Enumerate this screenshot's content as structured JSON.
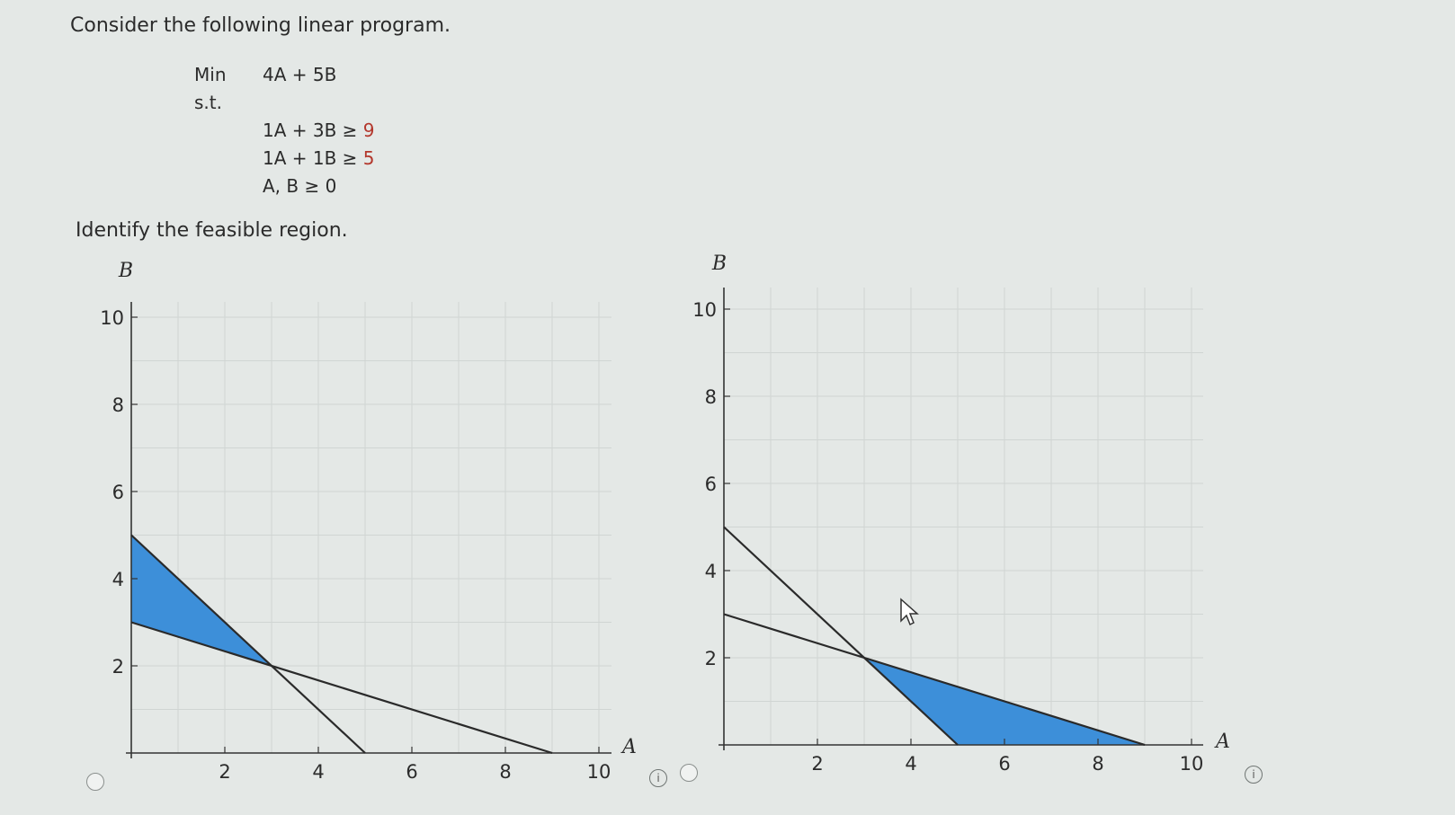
{
  "question": {
    "intro": "Consider the following linear program.",
    "objective_kw": "Min",
    "objective": "4A + 5B",
    "st_kw": "s.t.",
    "constraints": [
      {
        "lhs": "1A + 3B ≥ ",
        "rhs": "9"
      },
      {
        "lhs": "1A + 1B ≥ ",
        "rhs": "5"
      }
    ],
    "nonneg": "A, B ≥ 0",
    "prompt": "Identify the feasible region."
  },
  "choices": [
    {
      "chart_data": {
        "type": "line",
        "xlabel": "A",
        "ylabel": "B",
        "xlim": [
          0,
          10
        ],
        "ylim": [
          0,
          10
        ],
        "xticks": [
          "2",
          "4",
          "6",
          "8",
          "10"
        ],
        "yticks": [
          "2",
          "4",
          "6",
          "8",
          "10"
        ],
        "lines": [
          {
            "x": [
              0,
              5
            ],
            "y": [
              5,
              0
            ]
          },
          {
            "x": [
              0,
              9
            ],
            "y": [
              3,
              0
            ]
          }
        ],
        "shaded_region": {
          "x": [
            0,
            0,
            3
          ],
          "y": [
            5,
            3,
            2
          ]
        },
        "grid": true
      }
    },
    {
      "chart_data": {
        "type": "line",
        "xlabel": "A",
        "ylabel": "B",
        "xlim": [
          0,
          10
        ],
        "ylim": [
          0,
          10
        ],
        "xticks": [
          "2",
          "4",
          "6",
          "8",
          "10"
        ],
        "yticks": [
          "2",
          "4",
          "6",
          "8",
          "10"
        ],
        "lines": [
          {
            "x": [
              0,
              5
            ],
            "y": [
              5,
              0
            ]
          },
          {
            "x": [
              0,
              9
            ],
            "y": [
              3,
              0
            ]
          }
        ],
        "shaded_region": {
          "x": [
            3,
            5,
            9
          ],
          "y": [
            2,
            0,
            0
          ]
        },
        "grid": true
      }
    }
  ],
  "colors": {
    "fill": "#3d8fd9",
    "line": "#2a2a2a",
    "grid": "#d0d5d3"
  },
  "icons": {
    "radio": "radio-button-icon",
    "info": "info-icon",
    "cursor": "mouse-pointer-icon"
  }
}
